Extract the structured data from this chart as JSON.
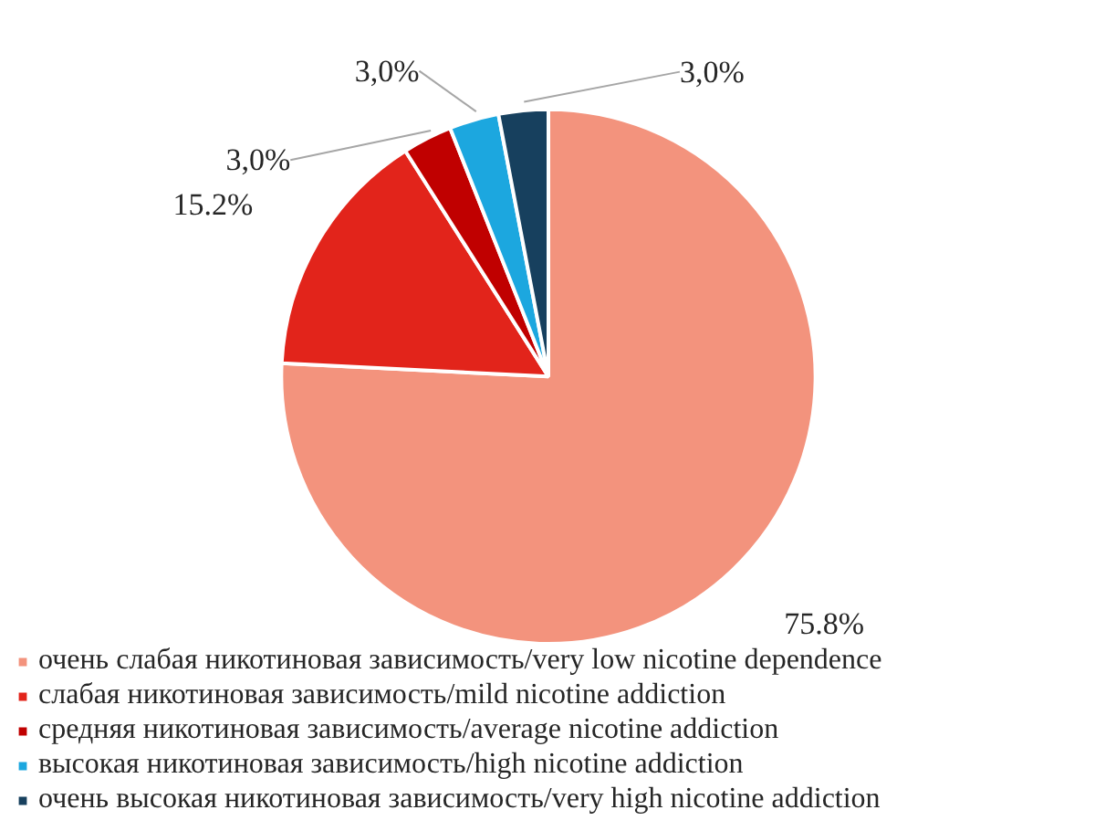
{
  "chart_data": {
    "type": "pie",
    "categories": [
      "очень слабая никотиновая зависимость/very low nicotine dependence",
      "слабая никотиновая зависимость/mild nicotine addiction",
      "средняя никотиновая зависимость/average nicotine addiction",
      "высокая никотиновая зависимость/high nicotine addiction",
      "очень высокая никотиновая зависимость/very high nicotine addiction"
    ],
    "values": [
      75.8,
      15.2,
      3.0,
      3.0,
      3.0
    ],
    "colors": [
      "#f3937d",
      "#e2241b",
      "#c00000",
      "#1ca7df",
      "#17405e"
    ],
    "value_labels": [
      "75.8%",
      "15.2%",
      "3,0%",
      "3,0%",
      "3,0%"
    ],
    "legend": "bottom"
  }
}
